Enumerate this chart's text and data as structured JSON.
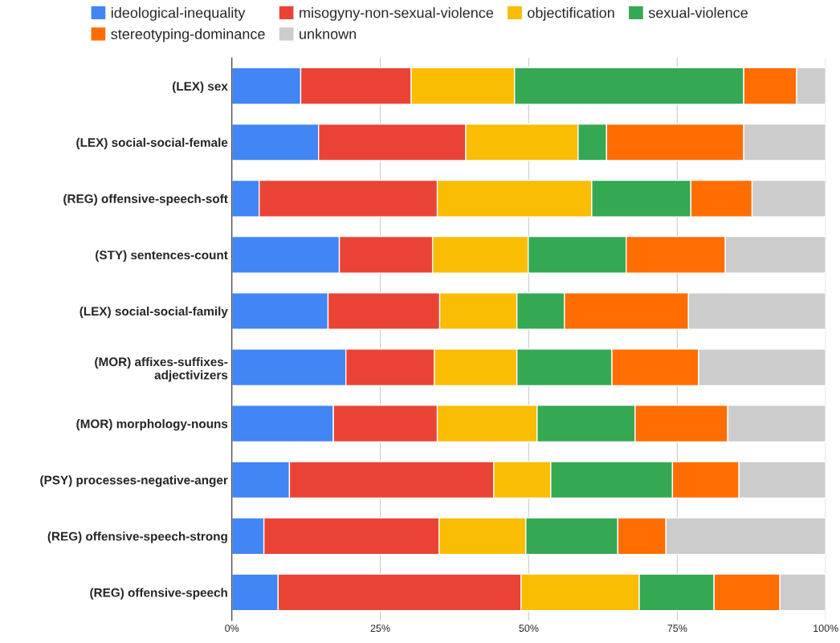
{
  "chart_data": {
    "type": "bar",
    "orientation": "horizontal",
    "stacked": true,
    "categories": [
      "(LEX) sex",
      "(LEX) social-social-female",
      "(REG) offensive-speech-soft",
      "(STY) sentences-count",
      "(LEX) social-social-family",
      "(MOR) affixes-suffixes-\nadjectivizers",
      "(MOR) morphology-nouns",
      "(PSY) processes-negative-anger",
      "(REG) offensive-speech-strong",
      "(REG) offensive-speech"
    ],
    "series": [
      {
        "name": "ideological-inequality",
        "color": "#4285f4",
        "values": [
          11.6,
          14.6,
          4.6,
          18.1,
          16.2,
          19.2,
          17.1,
          9.7,
          5.4,
          7.8
        ]
      },
      {
        "name": "misogyny-non-sexual-violence",
        "color": "#ea4335",
        "values": [
          18.6,
          24.8,
          30.0,
          15.7,
          18.8,
          14.9,
          17.5,
          34.4,
          29.5,
          40.9
        ]
      },
      {
        "name": "objectification",
        "color": "#fbbc04",
        "values": [
          17.4,
          18.9,
          26.0,
          16.1,
          13.0,
          13.9,
          16.8,
          9.6,
          14.6,
          19.9
        ]
      },
      {
        "name": "sexual-violence",
        "color": "#34a853",
        "values": [
          38.6,
          4.8,
          16.7,
          16.5,
          8.0,
          16.0,
          16.5,
          20.5,
          15.5,
          12.6
        ]
      },
      {
        "name": "stereotyping-dominance",
        "color": "#ff6d01",
        "values": [
          8.9,
          23.1,
          10.3,
          16.7,
          20.9,
          14.6,
          15.6,
          11.2,
          8.1,
          11.1
        ]
      },
      {
        "name": "unknown",
        "color": "#cccccc",
        "values": [
          4.9,
          13.8,
          12.4,
          16.9,
          23.1,
          21.4,
          16.5,
          14.6,
          26.9,
          7.7
        ]
      }
    ],
    "xlim": [
      0,
      100
    ],
    "xticks": [
      {
        "value": 0,
        "label": "0%"
      },
      {
        "value": 25,
        "label": "25%"
      },
      {
        "value": 50,
        "label": "50%"
      },
      {
        "value": 75,
        "label": "75%"
      },
      {
        "value": 100,
        "label": "100%"
      }
    ],
    "grid": "x",
    "legend": "top"
  }
}
